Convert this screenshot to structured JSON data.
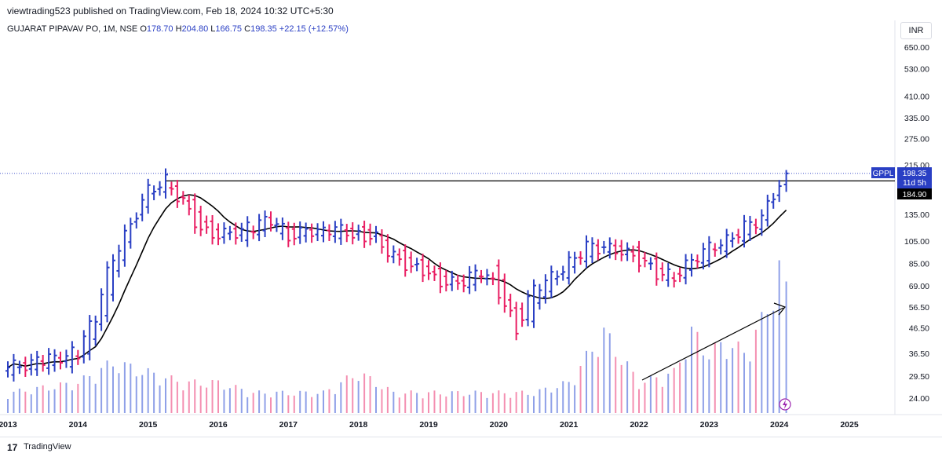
{
  "header": {
    "published": "viewtrading523 published on TradingView.com, Feb 18, 2024 10:32 UTC+5:30"
  },
  "legend": {
    "symbol": "GUJARAT PIPAVAV PO, 1M, NSE",
    "o_label": "O",
    "o": "178.70",
    "h_label": "H",
    "h": "204.80",
    "l_label": "L",
    "l": "166.75",
    "c_label": "C",
    "c": "198.35",
    "change": "+22.15 (+12.57%)"
  },
  "currency_button": "INR",
  "footer": {
    "logo": "17",
    "brand": "TradingView"
  },
  "chart_data": {
    "type": "ohlc",
    "x_axis_labels": [
      "2013",
      "2014",
      "2015",
      "2016",
      "2017",
      "2018",
      "2019",
      "2020",
      "2021",
      "2022",
      "2023",
      "2024",
      "2025"
    ],
    "y_axis_labels": [
      "650.00",
      "530.00",
      "410.00",
      "335.00",
      "275.00",
      "215.00",
      "135.00",
      "105.00",
      "85.00",
      "69.00",
      "56.50",
      "46.50",
      "36.50",
      "29.50",
      "24.00"
    ],
    "y_scale": "log",
    "price_tag": {
      "symbol": "GPPL",
      "price": "198.35",
      "countdown": "11d 5h"
    },
    "level_tag": "184.90",
    "horizontal_level": 184.9,
    "up_color": "#2a3fc4",
    "down_color": "#e91e63",
    "moving_average_color": "#000000",
    "ohlc_points": [
      [
        2013.0,
        31,
        33,
        30,
        32
      ],
      [
        2013.5,
        33,
        36,
        31,
        34
      ],
      [
        2014.0,
        34,
        38,
        32,
        37
      ],
      [
        2014.25,
        40,
        55,
        38,
        52
      ],
      [
        2014.5,
        62,
        100,
        58,
        90
      ],
      [
        2014.75,
        105,
        128,
        100,
        122
      ],
      [
        2015.0,
        150,
        180,
        140,
        170
      ],
      [
        2015.25,
        175,
        200,
        160,
        185
      ],
      [
        2015.5,
        165,
        175,
        140,
        150
      ],
      [
        2015.75,
        140,
        150,
        110,
        115
      ],
      [
        2016.0,
        115,
        125,
        100,
        110
      ],
      [
        2016.5,
        110,
        130,
        100,
        120
      ],
      [
        2016.75,
        125,
        140,
        110,
        130
      ],
      [
        2017.0,
        115,
        125,
        95,
        110
      ],
      [
        2017.5,
        110,
        130,
        105,
        120
      ],
      [
        2018.0,
        115,
        125,
        100,
        112
      ],
      [
        2018.25,
        115,
        125,
        100,
        108
      ],
      [
        2018.5,
        95,
        105,
        80,
        90
      ],
      [
        2019.0,
        85,
        90,
        70,
        75
      ],
      [
        2019.25,
        75,
        85,
        65,
        70
      ],
      [
        2019.5,
        70,
        80,
        63,
        72
      ],
      [
        2019.75,
        72,
        85,
        70,
        80
      ],
      [
        2020.0,
        80,
        85,
        60,
        65
      ],
      [
        2020.25,
        55,
        65,
        38,
        45
      ],
      [
        2020.5,
        50,
        70,
        48,
        68
      ],
      [
        2020.75,
        68,
        80,
        65,
        75
      ],
      [
        2021.0,
        78,
        90,
        75,
        85
      ],
      [
        2021.25,
        90,
        105,
        85,
        100
      ],
      [
        2021.5,
        100,
        108,
        95,
        98
      ],
      [
        2021.75,
        98,
        103,
        92,
        95
      ],
      [
        2022.0,
        95,
        100,
        85,
        88
      ],
      [
        2022.25,
        85,
        88,
        75,
        78
      ],
      [
        2022.5,
        72,
        80,
        65,
        75
      ],
      [
        2022.75,
        80,
        90,
        78,
        88
      ],
      [
        2023.0,
        90,
        105,
        88,
        100
      ],
      [
        2023.25,
        100,
        110,
        95,
        105
      ],
      [
        2023.5,
        110,
        125,
        105,
        120
      ],
      [
        2023.75,
        120,
        135,
        115,
        130
      ],
      [
        2024.0,
        160,
        185,
        155,
        178
      ],
      [
        2024.1,
        178.7,
        204.8,
        166.75,
        198.35
      ]
    ],
    "volume_bars": [
      [
        2013.0,
        2
      ],
      [
        2013.5,
        2.5
      ],
      [
        2014.0,
        3
      ],
      [
        2014.5,
        5
      ],
      [
        2015.0,
        4
      ],
      [
        2015.5,
        3
      ],
      [
        2016.0,
        3
      ],
      [
        2016.5,
        2
      ],
      [
        2017.0,
        2
      ],
      [
        2017.5,
        2
      ],
      [
        2018.0,
        4
      ],
      [
        2018.5,
        2
      ],
      [
        2019.0,
        2
      ],
      [
        2019.5,
        2
      ],
      [
        2020.0,
        2
      ],
      [
        2020.5,
        2
      ],
      [
        2021.0,
        3
      ],
      [
        2021.5,
        8
      ],
      [
        2022.0,
        3
      ],
      [
        2022.5,
        4
      ],
      [
        2022.75,
        8
      ],
      [
        2023.0,
        6
      ],
      [
        2023.25,
        7
      ],
      [
        2023.5,
        6
      ],
      [
        2023.75,
        9
      ],
      [
        2024.0,
        14
      ],
      [
        2024.1,
        12
      ]
    ],
    "annotations": [
      "volume trendline arrow"
    ]
  }
}
